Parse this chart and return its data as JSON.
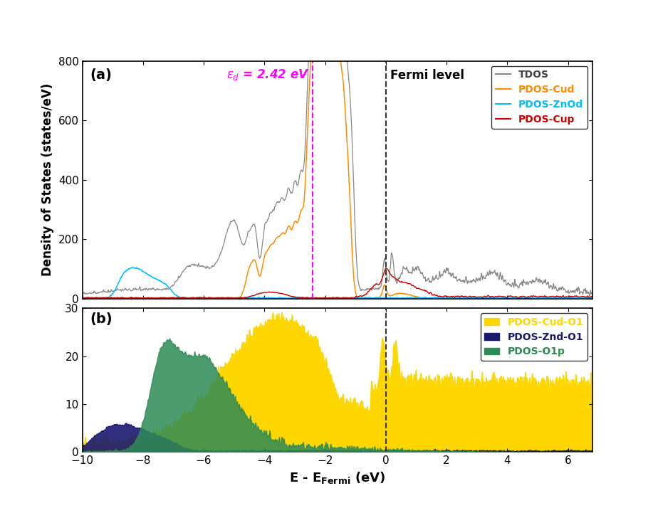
{
  "title_a": "(a)",
  "title_b": "(b)",
  "xlabel": "E - E$_{\\mathbf{Fermi}}$ (eV)",
  "ylabel_a": "Density of States (states/eV)",
  "xlim": [
    -10,
    6.8
  ],
  "ylim_a": [
    0,
    800
  ],
  "ylim_b": [
    0,
    30
  ],
  "yticks_a": [
    0,
    200,
    400,
    600,
    800
  ],
  "yticks_b": [
    0,
    10,
    20,
    30
  ],
  "xticks": [
    -10,
    -8,
    -6,
    -4,
    -2,
    0,
    2,
    4,
    6
  ],
  "fermi_x": 0.0,
  "epsilon_d_x": -2.42,
  "fermi_label": "Fermi level",
  "colors": {
    "TDOS": "#888888",
    "PDOS_Cud": "#FF8C00",
    "PDOS_ZnOd": "#00BFFF",
    "PDOS_Cup": "#CC0000",
    "PDOS_Cud_O1": "#FFD700",
    "PDOS_Znd_O1": "#191970",
    "PDOS_O1p": "#2E8B57"
  },
  "epsilon_d_color": "#FF00FF",
  "fermi_color": "#333333",
  "seed": 42
}
